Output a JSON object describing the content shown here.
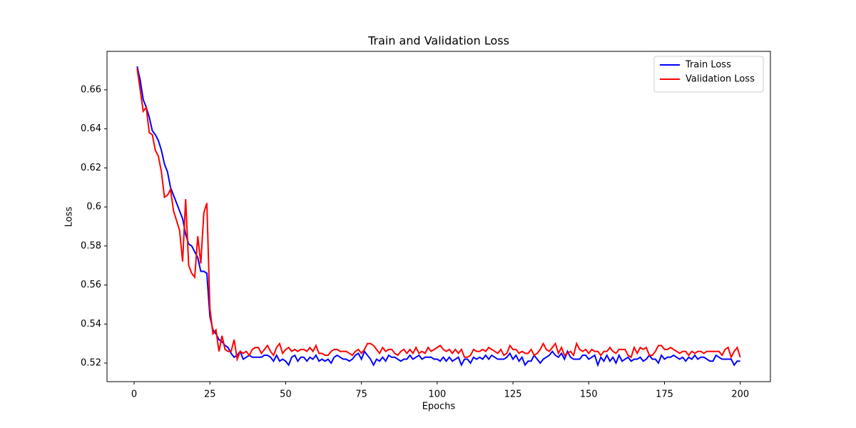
{
  "chart_data": {
    "type": "line",
    "title": "Train and Validation Loss",
    "x_label": "Epochs",
    "y_label": "Loss",
    "x": [
      1,
      2,
      3,
      4,
      5,
      6,
      7,
      8,
      9,
      10,
      11,
      12,
      13,
      14,
      15,
      16,
      17,
      18,
      19,
      20,
      21,
      22,
      23,
      24,
      25,
      26,
      27,
      28,
      29,
      30,
      31,
      32,
      33,
      34,
      35,
      36,
      37,
      38,
      39,
      40,
      41,
      42,
      43,
      44,
      45,
      46,
      47,
      48,
      49,
      50,
      51,
      52,
      53,
      54,
      55,
      56,
      57,
      58,
      59,
      60,
      61,
      62,
      63,
      64,
      65,
      66,
      67,
      68,
      69,
      70,
      71,
      72,
      73,
      74,
      75,
      76,
      77,
      78,
      79,
      80,
      81,
      82,
      83,
      84,
      85,
      86,
      87,
      88,
      89,
      90,
      91,
      92,
      93,
      94,
      95,
      96,
      97,
      98,
      99,
      100,
      101,
      102,
      103,
      104,
      105,
      106,
      107,
      108,
      109,
      110,
      111,
      112,
      113,
      114,
      115,
      116,
      117,
      118,
      119,
      120,
      121,
      122,
      123,
      124,
      125,
      126,
      127,
      128,
      129,
      130,
      131,
      132,
      133,
      134,
      135,
      136,
      137,
      138,
      139,
      140,
      141,
      142,
      143,
      144,
      145,
      146,
      147,
      148,
      149,
      150,
      151,
      152,
      153,
      154,
      155,
      156,
      157,
      158,
      159,
      160,
      161,
      162,
      163,
      164,
      165,
      166,
      167,
      168,
      169,
      170,
      171,
      172,
      173,
      174,
      175,
      176,
      177,
      178,
      179,
      180,
      181,
      182,
      183,
      184,
      185,
      186,
      187,
      188,
      189,
      190,
      191,
      192,
      193,
      194,
      195,
      196,
      197,
      198,
      199,
      200
    ],
    "series": [
      {
        "name": "Train Loss",
        "color": "#0000ff",
        "values": [
          0.672,
          0.665,
          0.655,
          0.651,
          0.646,
          0.639,
          0.637,
          0.634,
          0.629,
          0.622,
          0.618,
          0.61,
          0.606,
          0.602,
          0.598,
          0.594,
          0.586,
          0.581,
          0.58,
          0.577,
          0.574,
          0.567,
          0.567,
          0.566,
          0.544,
          0.537,
          0.535,
          0.532,
          0.531,
          0.529,
          0.528,
          0.525,
          0.523,
          0.524,
          0.526,
          0.522,
          0.523,
          0.524,
          0.523,
          0.523,
          0.523,
          0.523,
          0.524,
          0.524,
          0.523,
          0.521,
          0.524,
          0.521,
          0.522,
          0.521,
          0.519,
          0.523,
          0.524,
          0.521,
          0.523,
          0.523,
          0.521,
          0.523,
          0.522,
          0.524,
          0.521,
          0.522,
          0.521,
          0.522,
          0.52,
          0.523,
          0.524,
          0.523,
          0.522,
          0.522,
          0.521,
          0.522,
          0.524,
          0.525,
          0.522,
          0.526,
          0.524,
          0.522,
          0.519,
          0.522,
          0.521,
          0.523,
          0.521,
          0.524,
          0.523,
          0.523,
          0.522,
          0.521,
          0.522,
          0.522,
          0.524,
          0.522,
          0.523,
          0.524,
          0.522,
          0.523,
          0.523,
          0.523,
          0.522,
          0.522,
          0.521,
          0.523,
          0.521,
          0.523,
          0.521,
          0.522,
          0.523,
          0.519,
          0.522,
          0.522,
          0.52,
          0.523,
          0.522,
          0.523,
          0.522,
          0.524,
          0.522,
          0.524,
          0.523,
          0.522,
          0.522,
          0.522,
          0.523,
          0.525,
          0.522,
          0.524,
          0.521,
          0.523,
          0.519,
          0.521,
          0.521,
          0.524,
          0.522,
          0.52,
          0.522,
          0.523,
          0.524,
          0.526,
          0.524,
          0.523,
          0.525,
          0.522,
          0.526,
          0.523,
          0.522,
          0.522,
          0.522,
          0.524,
          0.524,
          0.522,
          0.523,
          0.524,
          0.519,
          0.523,
          0.521,
          0.524,
          0.521,
          0.523,
          0.52,
          0.524,
          0.521,
          0.522,
          0.523,
          0.521,
          0.522,
          0.522,
          0.523,
          0.521,
          0.522,
          0.524,
          0.522,
          0.522,
          0.52,
          0.524,
          0.522,
          0.523,
          0.523,
          0.524,
          0.523,
          0.522,
          0.523,
          0.521,
          0.523,
          0.522,
          0.524,
          0.522,
          0.523,
          0.523,
          0.522,
          0.521,
          0.521,
          0.524,
          0.523,
          0.522,
          0.522,
          0.522,
          0.522,
          0.519,
          0.521,
          0.521
        ]
      },
      {
        "name": "Validation Loss",
        "color": "#ff0000",
        "values": [
          0.671,
          0.66,
          0.649,
          0.651,
          0.638,
          0.637,
          0.629,
          0.626,
          0.618,
          0.605,
          0.606,
          0.609,
          0.598,
          0.593,
          0.588,
          0.572,
          0.604,
          0.57,
          0.566,
          0.564,
          0.585,
          0.571,
          0.597,
          0.602,
          0.548,
          0.535,
          0.537,
          0.526,
          0.534,
          0.527,
          0.526,
          0.526,
          0.532,
          0.522,
          0.526,
          0.525,
          0.526,
          0.524,
          0.527,
          0.528,
          0.528,
          0.525,
          0.527,
          0.529,
          0.526,
          0.524,
          0.528,
          0.53,
          0.525,
          0.527,
          0.528,
          0.526,
          0.527,
          0.526,
          0.527,
          0.527,
          0.526,
          0.528,
          0.526,
          0.529,
          0.525,
          0.525,
          0.524,
          0.524,
          0.526,
          0.527,
          0.527,
          0.526,
          0.526,
          0.526,
          0.525,
          0.524,
          0.526,
          0.527,
          0.525,
          0.527,
          0.53,
          0.53,
          0.529,
          0.527,
          0.525,
          0.528,
          0.526,
          0.527,
          0.527,
          0.525,
          0.524,
          0.526,
          0.527,
          0.525,
          0.527,
          0.525,
          0.528,
          0.525,
          0.526,
          0.525,
          0.528,
          0.526,
          0.527,
          0.528,
          0.529,
          0.527,
          0.526,
          0.527,
          0.525,
          0.527,
          0.525,
          0.527,
          0.523,
          0.523,
          0.524,
          0.527,
          0.526,
          0.526,
          0.527,
          0.526,
          0.528,
          0.527,
          0.526,
          0.525,
          0.527,
          0.524,
          0.525,
          0.529,
          0.527,
          0.527,
          0.525,
          0.526,
          0.525,
          0.525,
          0.527,
          0.524,
          0.525,
          0.527,
          0.53,
          0.527,
          0.526,
          0.528,
          0.53,
          0.525,
          0.528,
          0.524,
          0.525,
          0.526,
          0.524,
          0.53,
          0.527,
          0.526,
          0.527,
          0.525,
          0.527,
          0.526,
          0.526,
          0.524,
          0.526,
          0.526,
          0.528,
          0.526,
          0.525,
          0.527,
          0.527,
          0.527,
          0.524,
          0.523,
          0.528,
          0.525,
          0.528,
          0.527,
          0.528,
          0.524,
          0.524,
          0.526,
          0.529,
          0.529,
          0.527,
          0.527,
          0.528,
          0.527,
          0.526,
          0.525,
          0.526,
          0.526,
          0.524,
          0.526,
          0.525,
          0.526,
          0.526,
          0.525,
          0.526,
          0.526,
          0.526,
          0.526,
          0.526,
          0.524,
          0.527,
          0.528,
          0.523,
          0.526,
          0.528,
          0.523
        ]
      }
    ],
    "xlim": [
      -8.95,
      209.95
    ],
    "ylim": [
      0.5105,
      0.6797
    ],
    "xticks": [
      0,
      25,
      50,
      75,
      100,
      125,
      150,
      175,
      200
    ],
    "yticks": [
      0.52,
      0.54,
      0.56,
      0.58,
      0.6,
      0.62,
      0.64,
      0.66
    ],
    "legend": "upper right"
  }
}
